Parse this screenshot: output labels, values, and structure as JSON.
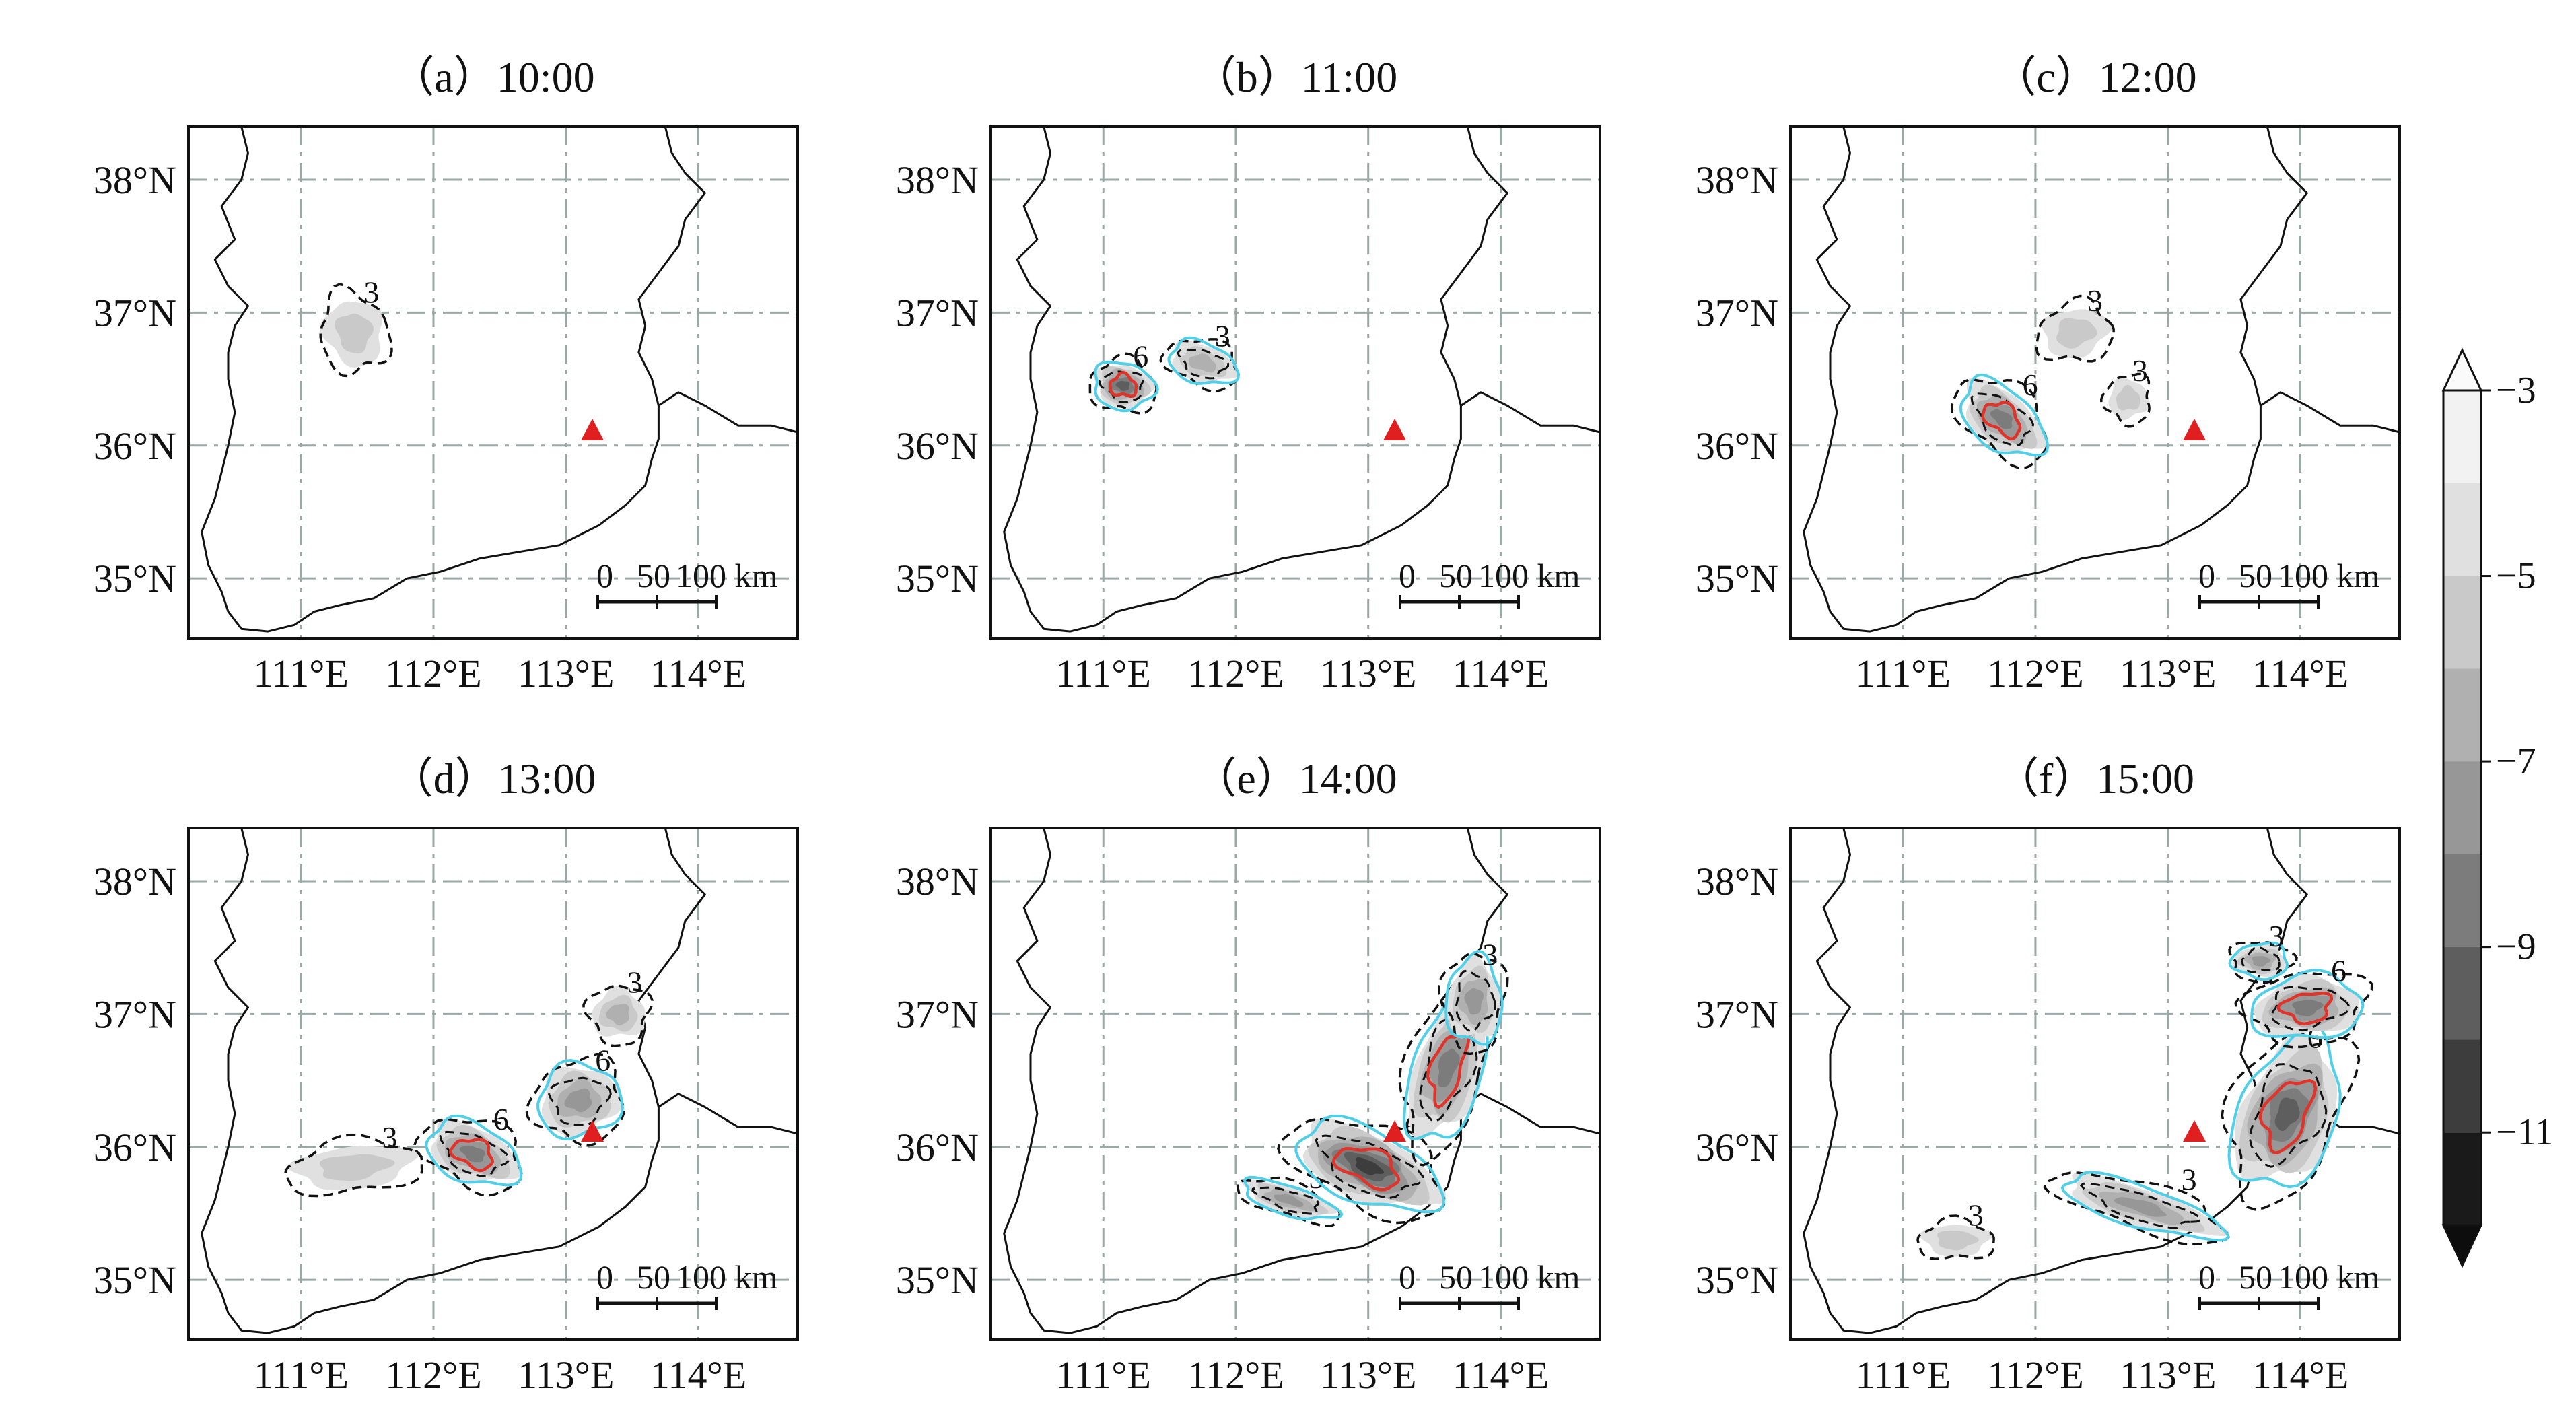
{
  "panels": [
    {
      "label": "（a）10:00",
      "radar": [
        113.2,
        36.1
      ]
    },
    {
      "label": "（b）11:00",
      "radar": [
        113.2,
        36.1
      ]
    },
    {
      "label": "（c）12:00",
      "radar": [
        113.2,
        36.1
      ]
    },
    {
      "label": "（d）13:00",
      "radar": [
        113.2,
        36.1
      ]
    },
    {
      "label": "（e）14:00",
      "radar": [
        113.2,
        36.1
      ]
    },
    {
      "label": "（f）15:00",
      "radar": [
        113.2,
        36.1
      ]
    }
  ],
  "lon_ticks": [
    {
      "value": 111,
      "label": "111°E"
    },
    {
      "value": 112,
      "label": "112°E"
    },
    {
      "value": 113,
      "label": "113°E"
    },
    {
      "value": 114,
      "label": "114°E"
    }
  ],
  "lat_ticks": [
    {
      "value": 35,
      "label": "35°N"
    },
    {
      "value": 36,
      "label": "36°N"
    },
    {
      "value": 37,
      "label": "37°N"
    },
    {
      "value": 38,
      "label": "38°N"
    }
  ],
  "scale_bar": {
    "labels": [
      "0",
      "50",
      "100 km"
    ],
    "distances_km": [
      0,
      50,
      100
    ]
  },
  "colorbar": {
    "ticks": [
      "−3",
      "−5",
      "−7",
      "−9",
      "−11"
    ],
    "tick_values": [
      -3,
      -5,
      -7,
      -9,
      -11
    ],
    "levels": [
      -3,
      -4,
      -5,
      -6,
      -7,
      -8,
      -9,
      -10,
      -11,
      -12
    ],
    "colors": [
      "#f2f2f2",
      "#e0e0e0",
      "#c9c9c9",
      "#b0b0b0",
      "#979797",
      "#7c7c7c",
      "#5e5e5e",
      "#3d3d3d",
      "#1a1a1a"
    ],
    "extend": "both"
  },
  "contour_labels": {
    "weak": "3",
    "strong": "6"
  },
  "colors": {
    "radar_marker": "#e02020",
    "cyan_contour": "#4fcfe8",
    "red_contour": "#e0332a",
    "dashed_contour": "#111111"
  }
}
